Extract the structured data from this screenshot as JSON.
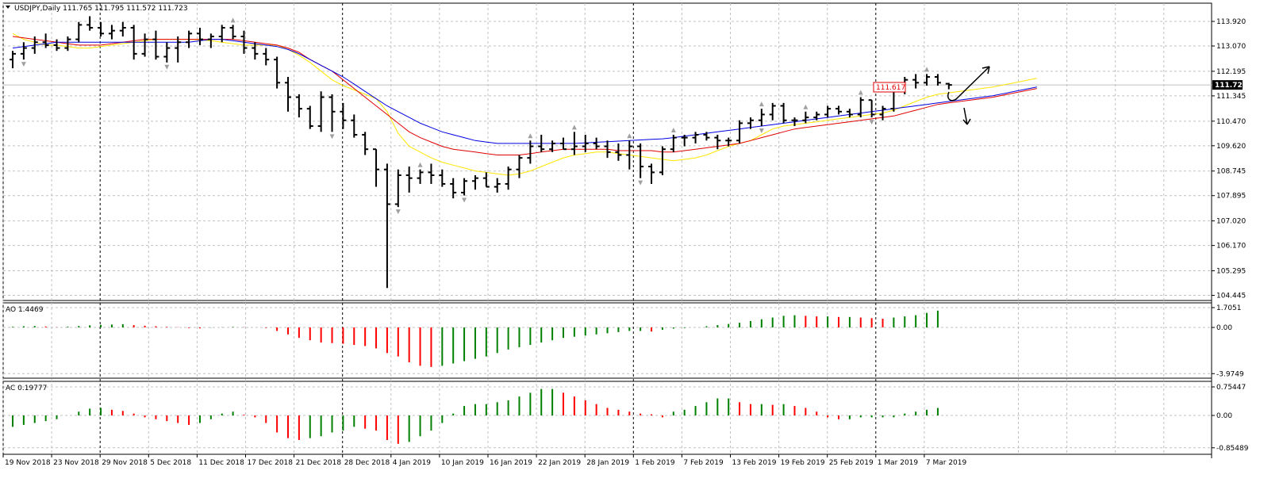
{
  "header": {
    "symbol_line": "USDJPY,Daily  111.765 111.795 111.572 111.723",
    "current_price_label": "111.723",
    "level_label": "111.617"
  },
  "colors": {
    "background": "#ffffff",
    "grid": "#c0c0c0",
    "bar": "#000000",
    "ma_fast": "#ffe600",
    "ma_mid": "#e00000",
    "ma_slow": "#0000e0",
    "osc_up": "#008000",
    "osc_down": "#ff0000",
    "fractal": "#a0a0a0",
    "price_box_bg": "#000000",
    "price_box_text": "#ffffff"
  },
  "panes": {
    "price": {
      "ticks": [
        "113.920",
        "113.070",
        "112.195",
        "111.345",
        "110.470",
        "109.620",
        "108.745",
        "107.895",
        "107.020",
        "106.170",
        "105.295",
        "104.445"
      ]
    },
    "ao": {
      "label": "AO 1.4469",
      "ticks": [
        "1.7051",
        "0.00",
        "-3.9749"
      ]
    },
    "ac": {
      "label": "AC 0.19777",
      "ticks": [
        "0.75447",
        "0.00",
        "-0.85489"
      ]
    }
  },
  "x_labels": [
    "19 Nov 2018",
    "23 Nov 2018",
    "29 Nov 2018",
    "5 Dec 2018",
    "11 Dec 2018",
    "17 Dec 2018",
    "21 Dec 2018",
    "28 Dec 2018",
    "4 Jan 2019",
    "10 Jan 2019",
    "16 Jan 2019",
    "22 Jan 2019",
    "28 Jan 2019",
    "1 Feb 2019",
    "7 Feb 2019",
    "13 Feb 2019",
    "19 Feb 2019",
    "25 Feb 2019",
    "1 Mar 2019",
    "7 Mar 2019"
  ],
  "chart_data": [
    {
      "type": "ohlc",
      "title": "USDJPY,Daily",
      "ylim": [
        104.445,
        114.3
      ],
      "bars": [
        [
          112.6,
          112.9,
          112.3,
          112.8
        ],
        [
          112.8,
          113.2,
          112.6,
          113.0
        ],
        [
          113.0,
          113.4,
          112.8,
          113.2
        ],
        [
          113.2,
          113.5,
          113.0,
          113.1
        ],
        [
          113.1,
          113.3,
          112.9,
          113.0
        ],
        [
          113.0,
          113.4,
          112.9,
          113.3
        ],
        [
          113.3,
          113.9,
          113.2,
          113.8
        ],
        [
          113.8,
          114.1,
          113.6,
          113.7
        ],
        [
          113.7,
          113.9,
          113.4,
          113.5
        ],
        [
          113.5,
          113.8,
          113.3,
          113.6
        ],
        [
          113.6,
          113.9,
          113.4,
          113.7
        ],
        [
          113.7,
          113.8,
          112.6,
          112.8
        ],
        [
          112.8,
          113.5,
          112.7,
          113.3
        ],
        [
          113.3,
          113.6,
          112.6,
          112.7
        ],
        [
          112.7,
          113.2,
          112.5,
          113.0
        ],
        [
          113.0,
          113.4,
          112.5,
          113.2
        ],
        [
          113.2,
          113.6,
          113.0,
          113.5
        ],
        [
          113.5,
          113.7,
          113.1,
          113.3
        ],
        [
          113.3,
          113.5,
          113.0,
          113.4
        ],
        [
          113.4,
          113.8,
          113.2,
          113.7
        ],
        [
          113.7,
          113.8,
          113.3,
          113.4
        ],
        [
          113.4,
          113.6,
          112.8,
          113.0
        ],
        [
          113.0,
          113.2,
          112.6,
          112.8
        ],
        [
          112.8,
          113.0,
          112.4,
          112.6
        ],
        [
          112.6,
          112.7,
          111.6,
          111.8
        ],
        [
          111.8,
          112.0,
          110.8,
          111.3
        ],
        [
          111.3,
          111.4,
          110.6,
          110.9
        ],
        [
          110.9,
          111.0,
          110.2,
          110.3
        ],
        [
          110.3,
          111.5,
          110.1,
          111.3
        ],
        [
          111.3,
          111.4,
          110.1,
          110.8
        ],
        [
          110.8,
          111.1,
          110.2,
          110.5
        ],
        [
          110.5,
          110.7,
          109.9,
          110.0
        ],
        [
          110.0,
          110.1,
          109.3,
          109.5
        ],
        [
          109.5,
          109.5,
          108.2,
          108.8
        ],
        [
          108.8,
          109.0,
          104.7,
          107.6
        ],
        [
          107.6,
          108.8,
          107.5,
          108.6
        ],
        [
          108.6,
          108.9,
          108.0,
          108.5
        ],
        [
          108.5,
          108.8,
          108.3,
          108.7
        ],
        [
          108.7,
          109.0,
          108.3,
          108.6
        ],
        [
          108.6,
          108.8,
          108.2,
          108.3
        ],
        [
          108.3,
          108.5,
          107.8,
          108.0
        ],
        [
          108.0,
          108.5,
          107.9,
          108.4
        ],
        [
          108.4,
          108.6,
          108.1,
          108.5
        ],
        [
          108.5,
          108.7,
          108.2,
          108.2
        ],
        [
          108.2,
          108.5,
          108.0,
          108.3
        ],
        [
          108.3,
          108.9,
          108.1,
          108.8
        ],
        [
          108.8,
          109.3,
          108.5,
          109.2
        ],
        [
          109.2,
          109.8,
          109.0,
          109.6
        ],
        [
          109.6,
          110.0,
          109.4,
          109.5
        ],
        [
          109.5,
          109.8,
          109.4,
          109.7
        ],
        [
          109.7,
          109.9,
          109.5,
          109.5
        ],
        [
          109.5,
          110.1,
          109.3,
          109.6
        ],
        [
          109.6,
          110.0,
          109.4,
          109.7
        ],
        [
          109.7,
          109.9,
          109.5,
          109.6
        ],
        [
          109.6,
          109.8,
          109.2,
          109.4
        ],
        [
          109.4,
          109.7,
          109.1,
          109.3
        ],
        [
          109.3,
          109.8,
          108.8,
          109.6
        ],
        [
          109.6,
          109.7,
          108.5,
          108.9
        ],
        [
          108.9,
          109.0,
          108.3,
          108.7
        ],
        [
          108.7,
          109.6,
          108.6,
          109.5
        ],
        [
          109.5,
          110.0,
          109.4,
          109.9
        ],
        [
          109.9,
          110.0,
          109.6,
          109.9
        ],
        [
          109.9,
          110.1,
          109.7,
          110.0
        ],
        [
          110.0,
          110.1,
          109.8,
          109.9
        ],
        [
          109.9,
          110.0,
          109.5,
          109.8
        ],
        [
          109.8,
          109.9,
          109.6,
          109.8
        ],
        [
          109.8,
          110.5,
          109.7,
          110.4
        ],
        [
          110.4,
          110.6,
          110.2,
          110.5
        ],
        [
          110.5,
          110.9,
          110.3,
          110.7
        ],
        [
          110.7,
          111.1,
          110.5,
          111.0
        ],
        [
          111.0,
          111.1,
          110.4,
          110.5
        ],
        [
          110.5,
          110.6,
          110.3,
          110.5
        ],
        [
          110.5,
          110.8,
          110.4,
          110.6
        ],
        [
          110.6,
          110.8,
          110.5,
          110.7
        ],
        [
          110.7,
          111.0,
          110.6,
          110.9
        ],
        [
          110.9,
          111.0,
          110.7,
          110.8
        ],
        [
          110.8,
          110.9,
          110.6,
          110.7
        ],
        [
          110.7,
          111.3,
          110.6,
          111.2
        ],
        [
          111.2,
          111.2,
          110.6,
          110.7
        ],
        [
          110.7,
          111.0,
          110.5,
          110.9
        ],
        [
          110.9,
          111.7,
          110.8,
          111.5
        ],
        [
          111.5,
          112.0,
          111.4,
          111.9
        ],
        [
          111.9,
          112.1,
          111.6,
          111.8
        ],
        [
          111.8,
          112.1,
          111.7,
          112.0
        ],
        [
          112.0,
          112.1,
          111.7,
          111.8
        ],
        [
          111.765,
          111.795,
          111.572,
          111.723
        ]
      ]
    },
    {
      "type": "line",
      "name": "moving averages",
      "ylim": [
        104.445,
        114.3
      ],
      "series": [
        {
          "name": "",
          "color": "#ffe600",
          "values": [
            113.5,
            113.3,
            113.2,
            113.1,
            113.1,
            113.05,
            113.0,
            113.0,
            113.05,
            113.1,
            113.15,
            113.2,
            113.25,
            113.3,
            113.3,
            113.3,
            113.3,
            113.28,
            113.25,
            113.2,
            113.15,
            113.1,
            113.1,
            113.1,
            113.1,
            112.95,
            112.75,
            112.5,
            112.2,
            111.9,
            111.7,
            111.55,
            111.4,
            111.25,
            110.8,
            110.05,
            109.6,
            109.4,
            109.2,
            109.05,
            108.95,
            108.85,
            108.75,
            108.7,
            108.65,
            108.6,
            108.65,
            108.75,
            108.9,
            109.05,
            109.2,
            109.3,
            109.35,
            109.4,
            109.4,
            109.35,
            109.3,
            109.25,
            109.2,
            109.15,
            109.1,
            109.15,
            109.2,
            109.3,
            109.45,
            109.6,
            109.7,
            109.8,
            110.0,
            110.2,
            110.3,
            110.35,
            110.4,
            110.45,
            110.5,
            110.55,
            110.6,
            110.65,
            110.7,
            110.75,
            110.85,
            111.0,
            111.15,
            111.3,
            111.4
          ]
        },
        {
          "name": "",
          "color": "#e00000",
          "values": [
            113.4,
            113.35,
            113.3,
            113.25,
            113.2,
            113.15,
            113.1,
            113.1,
            113.1,
            113.15,
            113.2,
            113.25,
            113.3,
            113.3,
            113.3,
            113.3,
            113.3,
            113.3,
            113.3,
            113.3,
            113.3,
            113.25,
            113.2,
            113.15,
            113.1,
            113.0,
            112.85,
            112.6,
            112.4,
            112.2,
            111.9,
            111.6,
            111.3,
            111.0,
            110.7,
            110.4,
            110.1,
            109.9,
            109.75,
            109.6,
            109.5,
            109.45,
            109.4,
            109.35,
            109.3,
            109.3,
            109.3,
            109.35,
            109.4,
            109.45,
            109.5,
            109.5,
            109.5,
            109.5,
            109.5,
            109.45,
            109.45,
            109.45,
            109.45,
            109.4,
            109.4,
            109.45,
            109.5,
            109.55,
            109.6,
            109.65,
            109.7,
            109.8,
            109.9,
            110.0,
            110.1,
            110.2,
            110.25,
            110.3,
            110.35,
            110.4,
            110.45,
            110.5,
            110.55,
            110.6,
            110.65,
            110.75,
            110.85,
            110.95,
            111.05
          ]
        },
        {
          "name": "",
          "color": "#0000e0",
          "values": [
            113.0,
            113.05,
            113.1,
            113.15,
            113.2,
            113.2,
            113.2,
            113.2,
            113.2,
            113.2,
            113.2,
            113.2,
            113.2,
            113.2,
            113.2,
            113.2,
            113.2,
            113.25,
            113.3,
            113.3,
            113.25,
            113.2,
            113.15,
            113.1,
            113.05,
            112.95,
            112.8,
            112.6,
            112.4,
            112.2,
            112.0,
            111.75,
            111.5,
            111.25,
            111.0,
            110.8,
            110.6,
            110.4,
            110.25,
            110.1,
            110.0,
            109.9,
            109.8,
            109.75,
            109.7,
            109.7,
            109.7,
            109.7,
            109.7,
            109.7,
            109.7,
            109.7,
            109.72,
            109.74,
            109.76,
            109.78,
            109.8,
            109.82,
            109.84,
            109.86,
            109.9,
            109.95,
            110.0,
            110.05,
            110.1,
            110.15,
            110.2,
            110.25,
            110.3,
            110.35,
            110.4,
            110.45,
            110.5,
            110.55,
            110.6,
            110.65,
            110.7,
            110.75,
            110.8,
            110.85,
            110.9,
            110.95,
            111.0,
            111.05,
            111.1
          ]
        }
      ]
    },
    {
      "type": "bar",
      "name": "AO",
      "ylim": [
        -3.9749,
        1.7051
      ],
      "values": [
        0.05,
        0.1,
        0.12,
        0.08,
        0.02,
        0.06,
        0.12,
        0.18,
        0.22,
        0.25,
        0.28,
        0.2,
        0.15,
        0.1,
        0.05,
        0.02,
        -0.05,
        -0.08,
        -0.02,
        0.02,
        0.04,
        0.02,
        0.0,
        -0.05,
        -0.3,
        -0.6,
        -0.9,
        -1.1,
        -1.3,
        -1.35,
        -1.4,
        -1.5,
        -1.6,
        -1.8,
        -2.2,
        -2.5,
        -3.0,
        -3.3,
        -3.4,
        -3.3,
        -3.1,
        -2.9,
        -2.7,
        -2.5,
        -2.2,
        -1.9,
        -1.7,
        -1.5,
        -1.3,
        -1.1,
        -0.9,
        -0.8,
        -0.7,
        -0.6,
        -0.5,
        -0.4,
        -0.3,
        -0.3,
        -0.35,
        -0.2,
        -0.1,
        -0.05,
        0.0,
        0.1,
        0.2,
        0.3,
        0.4,
        0.55,
        0.7,
        0.85,
        1.0,
        1.05,
        1.0,
        0.95,
        0.95,
        0.9,
        0.9,
        0.85,
        0.8,
        0.75,
        0.85,
        0.95,
        1.05,
        1.25,
        1.4469
      ]
    },
    {
      "type": "bar",
      "name": "AC",
      "ylim": [
        -0.85489,
        0.75447
      ],
      "values": [
        -0.3,
        -0.25,
        -0.2,
        -0.15,
        -0.1,
        0.0,
        0.1,
        0.18,
        0.2,
        0.15,
        0.12,
        0.05,
        -0.05,
        -0.1,
        -0.15,
        -0.2,
        -0.25,
        -0.2,
        -0.1,
        0.05,
        0.1,
        0.02,
        -0.05,
        -0.2,
        -0.45,
        -0.6,
        -0.65,
        -0.6,
        -0.55,
        -0.45,
        -0.4,
        -0.3,
        -0.35,
        -0.4,
        -0.65,
        -0.75,
        -0.7,
        -0.55,
        -0.4,
        -0.2,
        0.05,
        0.25,
        0.3,
        0.3,
        0.35,
        0.4,
        0.5,
        0.6,
        0.7,
        0.7,
        0.6,
        0.5,
        0.4,
        0.3,
        0.2,
        0.15,
        0.1,
        0.05,
        0.03,
        -0.05,
        0.1,
        0.15,
        0.25,
        0.35,
        0.45,
        0.45,
        0.35,
        0.3,
        0.3,
        0.28,
        0.3,
        0.25,
        0.2,
        0.1,
        -0.05,
        -0.1,
        -0.1,
        -0.05,
        -0.05,
        -0.05,
        -0.05,
        0.05,
        0.1,
        0.15,
        0.19777
      ]
    }
  ]
}
